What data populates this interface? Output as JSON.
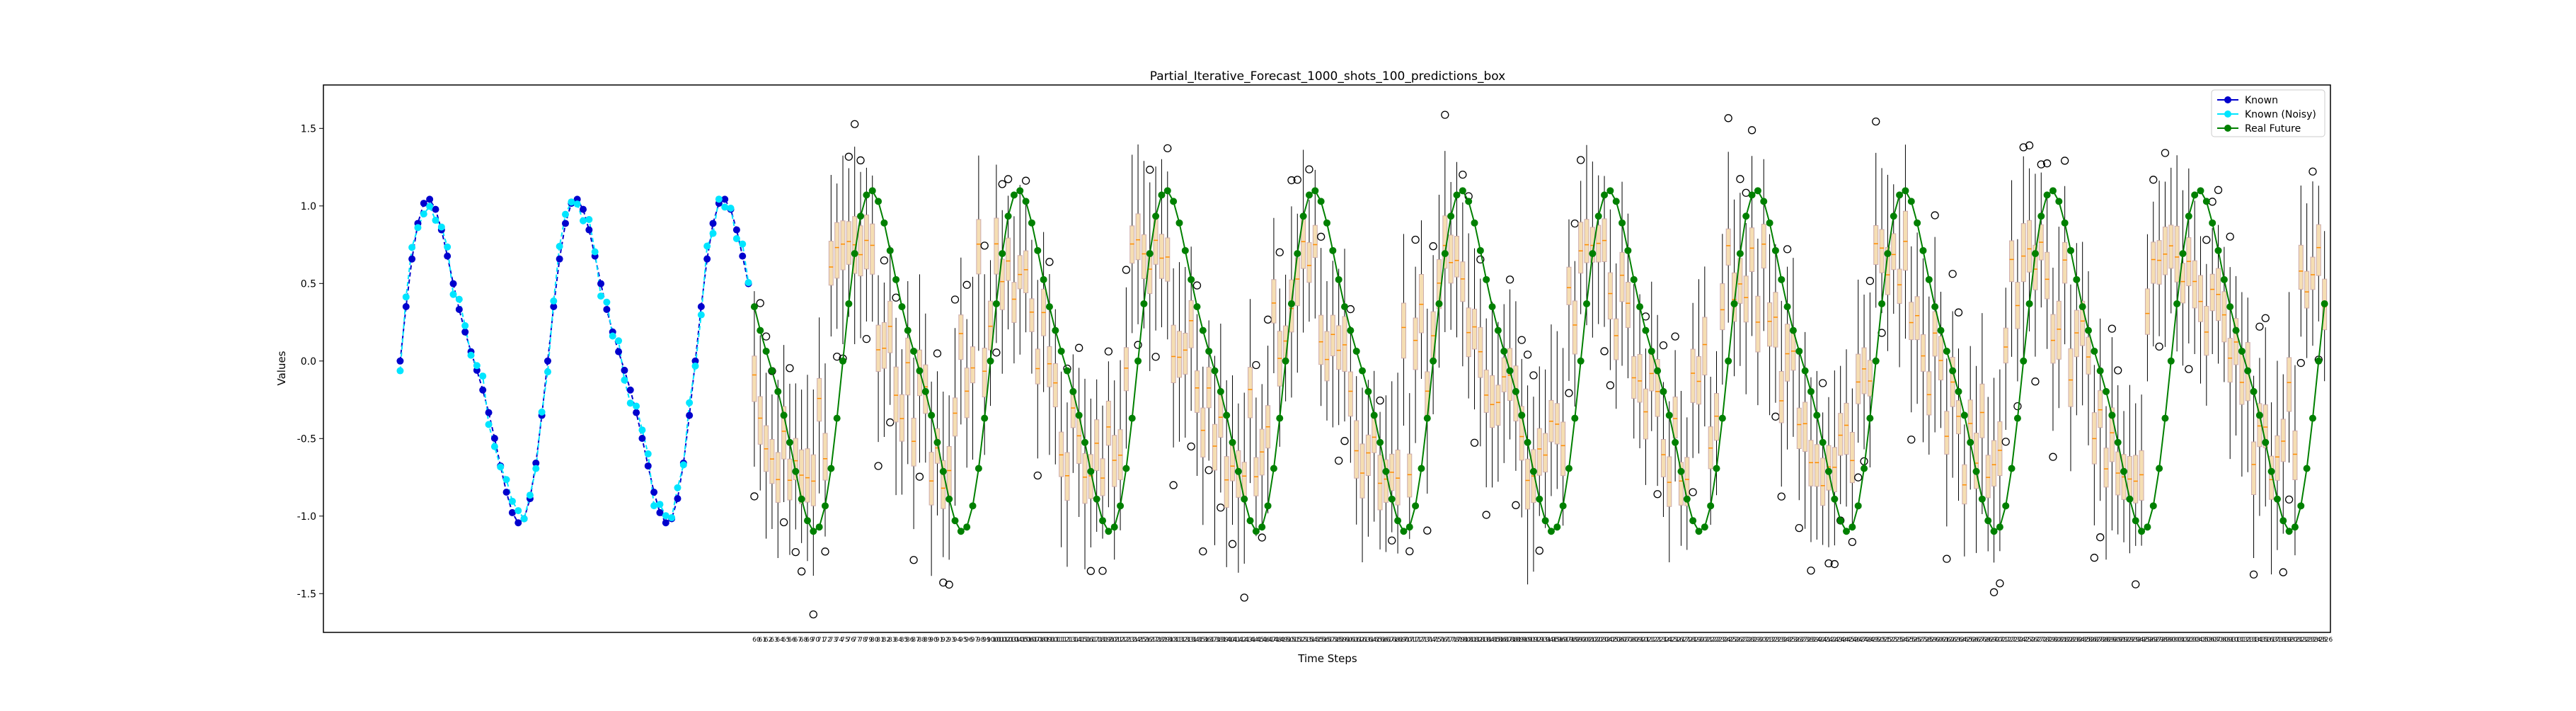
{
  "chart_data": {
    "type": "line",
    "title": "Partial_Iterative_Forecast_1000_shots_100_predictions_box",
    "xlabel": "Time Steps",
    "ylabel": "Values",
    "ylim": [
      -1.75,
      1.78
    ],
    "yticks": [
      -1.5,
      -1.0,
      -0.5,
      0.0,
      0.5,
      1.0,
      1.5
    ],
    "grid": false,
    "legend_position": "top-right",
    "known_x_range": [
      0,
      60
    ],
    "future_x_range": [
      60,
      327
    ],
    "period_steps": 25,
    "series": [
      {
        "name": "Known",
        "color": "#0000cd",
        "marker": "circle",
        "description_values": "sinusoid, two-frequency, x=0..60"
      },
      {
        "name": "Known (Noisy)",
        "color": "#00e5ff",
        "marker": "circle"
      },
      {
        "name": "Real Future",
        "color": "#008000",
        "marker": "circle"
      }
    ],
    "boxplot": {
      "box_color": "#f5deb3",
      "median_color": "#ff8c00",
      "whisker_color": "#000000",
      "flier_marker": "open-circle"
    }
  }
}
